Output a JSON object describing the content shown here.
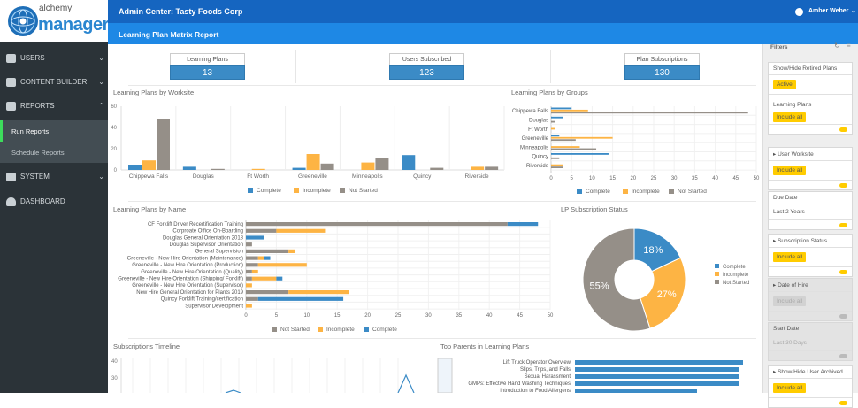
{
  "app": {
    "logo_text_top": "alchemy",
    "logo_text_bottom": "manager",
    "admin_center": "Admin Center: Tasty Foods Corp",
    "report_title": "Learning Plan Matrix Report",
    "user_name": "Amber Weber"
  },
  "sidebar": {
    "items": [
      {
        "label": "USERS",
        "icon": "users-icon"
      },
      {
        "label": "CONTENT BUILDER",
        "icon": "book-icon"
      },
      {
        "label": "REPORTS",
        "icon": "bar-chart-icon"
      },
      {
        "label": "SYSTEM",
        "icon": "gear-icon"
      },
      {
        "label": "DASHBOARD",
        "icon": "gauge-icon"
      }
    ],
    "sub_items": [
      {
        "label": "Run Reports",
        "active": true
      },
      {
        "label": "Schedule Reports"
      }
    ]
  },
  "kpis": [
    {
      "label": "Learning Plans",
      "value": "13"
    },
    {
      "label": "Users Subscribed",
      "value": "123"
    },
    {
      "label": "Plan Subscriptions",
      "value": "130"
    }
  ],
  "colors": {
    "complete": "#3b8bc6",
    "incomplete": "#fdb444",
    "not_started": "#958f88",
    "accent": "#ffcc00",
    "header": "#1565c0"
  },
  "filters": {
    "title": "Filters",
    "cards": [
      {
        "title": "Show/Hide Retired Plans",
        "value": "Active",
        "sub_title": "Learning Plans",
        "sub_value": "Include all"
      },
      {
        "title": "User Worksite",
        "value": "Include all"
      },
      {
        "title": "Due Date",
        "value": "Last 2 Years"
      },
      {
        "title": "Subscription Status",
        "value": "Include all"
      },
      {
        "title": "Date of Hire",
        "value": "Include all",
        "disabled": true
      },
      {
        "title": "Start Date",
        "value": "Last 30 Days",
        "disabled": true
      },
      {
        "title": "Show/Hide User Archived",
        "value": "Include all"
      }
    ]
  },
  "chart_data": [
    {
      "type": "bar",
      "title": "Learning Plans by Worksite",
      "categories": [
        "Chippewa Falls",
        "Douglas",
        "Ft Worth",
        "Greeneville",
        "Minneapolis",
        "Quincy",
        "Riverside"
      ],
      "series": [
        {
          "name": "Complete",
          "values": [
            5,
            3,
            0,
            2,
            0,
            14,
            0
          ]
        },
        {
          "name": "Incomplete",
          "values": [
            9,
            0,
            1,
            15,
            7,
            0,
            3
          ]
        },
        {
          "name": "Not Started",
          "values": [
            48,
            1,
            0,
            6,
            11,
            2,
            3
          ]
        }
      ],
      "ylim": [
        0,
        60
      ],
      "yticks": [
        0,
        20,
        40,
        60
      ],
      "legend": "bottom"
    },
    {
      "type": "bar",
      "orientation": "horizontal",
      "title": "Learning Plans by Groups",
      "categories": [
        "Chippewa Falls",
        "Douglas",
        "Ft Worth",
        "Greeneville",
        "Minneapolis",
        "Quincy",
        "Riverside"
      ],
      "series": [
        {
          "name": "Complete",
          "values": [
            5,
            3,
            0,
            2,
            0,
            14,
            0
          ]
        },
        {
          "name": "Incomplete",
          "values": [
            9,
            0,
            1,
            15,
            7,
            0,
            3
          ]
        },
        {
          "name": "Not Started",
          "values": [
            48,
            1,
            0,
            6,
            11,
            2,
            3
          ]
        }
      ],
      "xlim": [
        0,
        50
      ],
      "xticks": [
        0,
        5,
        10,
        15,
        20,
        25,
        30,
        35,
        40,
        45,
        50
      ],
      "legend": "bottom"
    },
    {
      "type": "bar",
      "orientation": "horizontal",
      "stacked": true,
      "title": "Learning Plans by Name",
      "categories": [
        "CF Forklift Driver Recertification Training",
        "Corproate Office On-Boarding",
        "Douglas General Orientation 2018",
        "Douglas Supervisor Orientation",
        "General Supervision",
        "Greeneville - New Hire Orientation (Maintenance)",
        "Greeneville - New Hire Orientation (Production)",
        "Greeneville - New Hire Orientation (Quality)",
        "Greeneville - New Hire Orientation (Shipping/ Forklift)",
        "Greeneville - New Hire Orientation (Supervisor)",
        "New Hire General Orientation for Plants 2019",
        "Quincy Forklift Training/certification",
        "Supervisor Development"
      ],
      "series": [
        {
          "name": "Not Started",
          "values": [
            43,
            5,
            0,
            1,
            7,
            2,
            2,
            1,
            1,
            0,
            7,
            2,
            0
          ]
        },
        {
          "name": "Incomplete",
          "values": [
            0,
            8,
            0,
            0,
            1,
            1,
            8,
            1,
            4,
            1,
            10,
            0,
            1
          ]
        },
        {
          "name": "Complete",
          "values": [
            5,
            0,
            3,
            0,
            0,
            1,
            0,
            0,
            1,
            0,
            0,
            14,
            0
          ]
        }
      ],
      "xlim": [
        0,
        50
      ],
      "xticks": [
        0,
        5,
        10,
        15,
        20,
        25,
        30,
        35,
        40,
        45,
        50
      ],
      "legend": "bottom"
    },
    {
      "type": "pie",
      "donut": true,
      "title": "LP Subscription Status",
      "labels": [
        "Complete",
        "Incomplete",
        "Not Started"
      ],
      "values": [
        18,
        27,
        55
      ],
      "value_labels": [
        "18%",
        "27%",
        "55%"
      ],
      "legend": "right"
    },
    {
      "type": "line",
      "title": "Subscriptions Timeline",
      "yticks": [
        40,
        30
      ]
    },
    {
      "type": "bar",
      "orientation": "horizontal",
      "title": "Top Parents in Learning Plans",
      "categories": [
        "Lift Truck Operator Overview",
        "Slips, Trips, and Falls",
        "Sexual Harassment",
        "GMPs: Effective Hand Washing Techniques",
        "Introduction to Food Allergens"
      ]
    }
  ]
}
